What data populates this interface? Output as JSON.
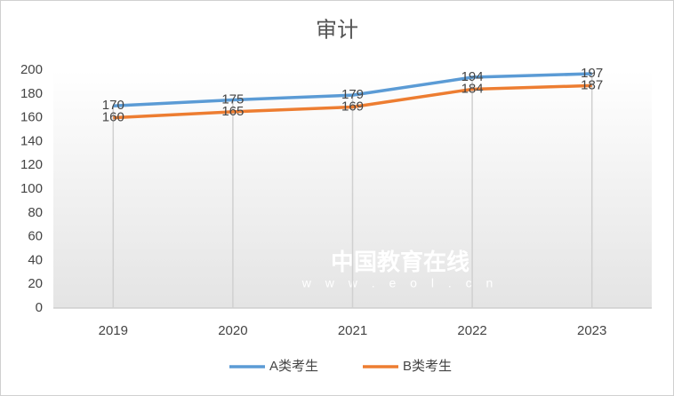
{
  "chart_data": {
    "type": "line",
    "title": "审计",
    "categories": [
      "2019",
      "2020",
      "2021",
      "2022",
      "2023"
    ],
    "series": [
      {
        "name": "A类考生",
        "color": "#5b9bd5",
        "values": [
          170,
          175,
          179,
          194,
          197
        ]
      },
      {
        "name": "B类考生",
        "color": "#ed7d31",
        "values": [
          160,
          165,
          169,
          184,
          187
        ]
      }
    ],
    "ylim": [
      0,
      200
    ],
    "yticks": [
      0,
      20,
      40,
      60,
      80,
      100,
      120,
      140,
      160,
      180,
      200
    ],
    "legend": "bottom",
    "watermark": [
      "中国教育在线",
      "w w w . e o l . c n"
    ]
  }
}
